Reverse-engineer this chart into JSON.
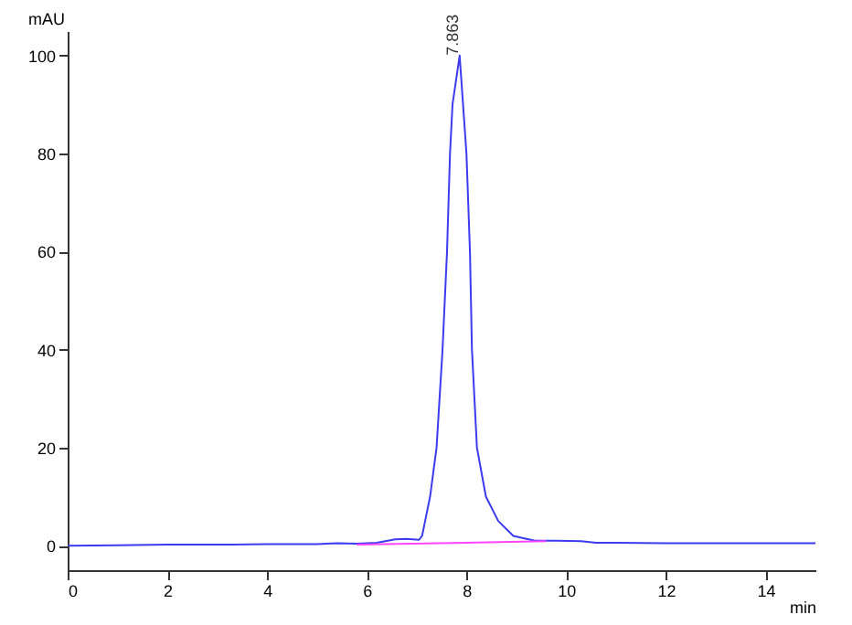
{
  "chart_data": {
    "type": "line",
    "xlabel": "min",
    "ylabel": "mAU",
    "xlim": [
      0,
      15
    ],
    "ylim": [
      -5,
      105
    ],
    "xticks": [
      0,
      2,
      4,
      6,
      8,
      10,
      12,
      14
    ],
    "yticks": [
      0,
      20,
      40,
      60,
      80,
      100
    ],
    "grid": false,
    "marker": "none",
    "line_style": "solid",
    "annotations": [
      {
        "text": "7.863",
        "x": 7.863,
        "y": 100
      }
    ],
    "series": [
      {
        "color": "#3b3bf0",
        "x": [
          0,
          1,
          2,
          3,
          4,
          5,
          5.4,
          5.8,
          6.2,
          6.57,
          6.8,
          7.05,
          7.11,
          7.17,
          7.27,
          7.4,
          7.52,
          7.61,
          7.67,
          7.72,
          7.863,
          8.0,
          8.07,
          8.11,
          8.21,
          8.39,
          8.64,
          8.94,
          9.37,
          9.8,
          10.3,
          10.6,
          11,
          12,
          13,
          14,
          15
        ],
        "values": [
          0,
          0.1,
          0.2,
          0.2,
          0.3,
          0.3,
          0.5,
          0.4,
          0.6,
          1.3,
          1.4,
          1.2,
          2,
          5,
          10,
          20,
          40,
          60,
          80,
          90,
          100,
          80,
          60,
          40,
          20,
          10,
          5,
          2,
          1,
          1,
          0.9,
          0.6,
          0.6,
          0.5,
          0.5,
          0.5,
          0.5
        ]
      },
      {
        "color": "#ff44ff",
        "x": [
          5.8,
          9.6
        ],
        "values": [
          0.2,
          0.9
        ]
      }
    ]
  }
}
